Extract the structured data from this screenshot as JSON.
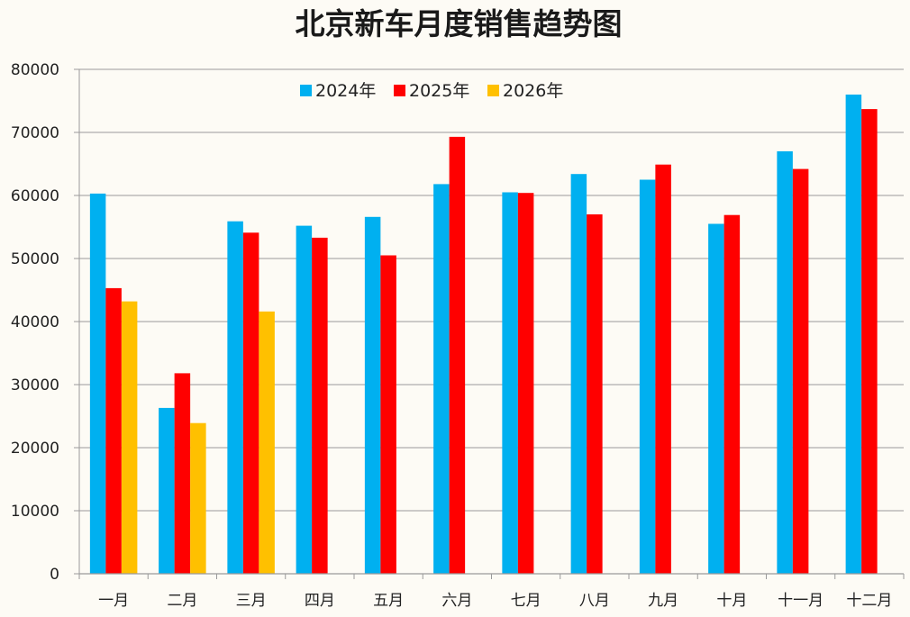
{
  "chart_data": {
    "type": "bar",
    "title": "北京新车月度销售趋势图",
    "categories": [
      "一月",
      "二月",
      "三月",
      "四月",
      "五月",
      "六月",
      "七月",
      "八月",
      "九月",
      "十月",
      "十一月",
      "十二月"
    ],
    "series": [
      {
        "name": "2024年",
        "color": "#00b0f0",
        "values": [
          60300,
          26300,
          55900,
          55200,
          56600,
          61800,
          60500,
          63400,
          62500,
          55500,
          67000,
          76000
        ]
      },
      {
        "name": "2025年",
        "color": "#ff0000",
        "values": [
          45300,
          31800,
          54100,
          53300,
          50500,
          69300,
          60400,
          57000,
          64900,
          56900,
          64200,
          73700
        ]
      },
      {
        "name": "2026年",
        "color": "#ffc000",
        "values": [
          43200,
          23900,
          41600,
          null,
          null,
          null,
          null,
          null,
          null,
          null,
          null,
          null
        ]
      }
    ],
    "ylim": [
      0,
      80000
    ],
    "yticks": [
      "0",
      "10000",
      "20000",
      "30000",
      "40000",
      "50000",
      "60000",
      "70000",
      "80000"
    ],
    "grid": true,
    "legend_position": "top-left",
    "xlabel": "",
    "ylabel": ""
  }
}
